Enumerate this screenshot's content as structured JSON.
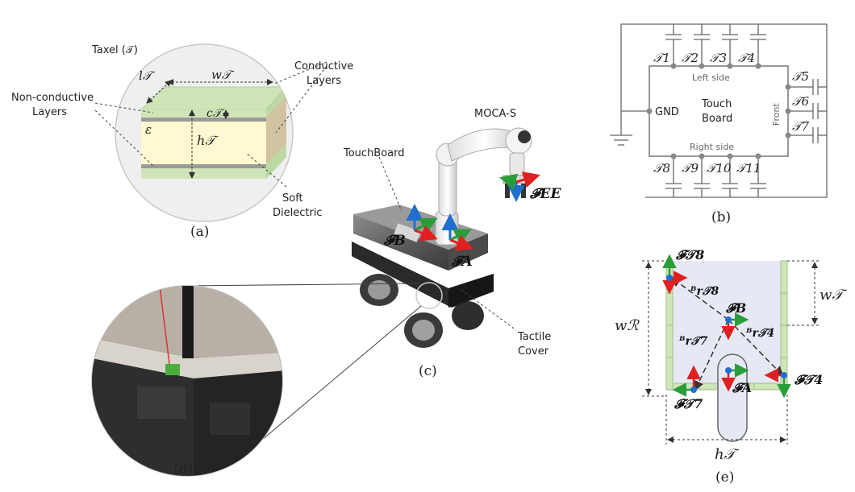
{
  "panel_a": {
    "caption": "(a)",
    "taxel_label": "Taxel (𝒯)",
    "conductive_label_1": "Conductive",
    "conductive_label_2": "Layers",
    "nonconductive_label_1": "Non-conductive",
    "nonconductive_label_2": "Layers",
    "soft_label_1": "Soft",
    "soft_label_2": "Dielectric",
    "l_T": "l𝒯",
    "w_T": "w𝒯",
    "c_T": "c𝒯",
    "h_T": "h𝒯",
    "epsilon": "ε"
  },
  "panel_b": {
    "caption": "(b)",
    "gnd": "GND",
    "board_1": "Touch",
    "board_2": "Board",
    "left_side": "Left side",
    "right_side": "Right side",
    "front": "Front",
    "taxels_top": [
      "𝒯1",
      "𝒯2",
      "𝒯3",
      "𝒯4"
    ],
    "taxels_right": [
      "𝒯5",
      "𝒯6",
      "𝒯7"
    ],
    "taxels_bottom": [
      "𝒯8",
      "𝒯9",
      "𝒯10",
      "𝒯11"
    ]
  },
  "panel_c": {
    "caption": "(c)",
    "moca": "MOCA-S",
    "touchboard": "TouchBoard",
    "tactile_1": "Tactile",
    "tactile_2": "Cover",
    "F_EE": "𝓕EE",
    "F_B": "𝓕B",
    "F_A": "𝓕A"
  },
  "panel_d": {
    "caption": "(d)"
  },
  "panel_e": {
    "caption": "(e)",
    "F_T8": "𝓕𝒯8",
    "F_B": "𝓕B",
    "F_A": "𝓕A",
    "F_T7": "𝓕𝒯7",
    "F_T4": "𝓕𝒯4",
    "r_T8": "ᴮr𝒯8",
    "r_T7": "ᴮr𝒯7",
    "r_T4": "ᴮr𝒯4",
    "w_T": "w𝒯",
    "w_R": "wℛ",
    "h_T": "h𝒯"
  },
  "colors": {
    "green_layer": "#cfe5b8",
    "dielectric": "#fff8d0",
    "grey_layer": "#9a9a9a",
    "axis_red": "#e02020",
    "axis_green": "#2a9d3a",
    "axis_blue": "#1f6fd0",
    "panel_e_fill": "#e6e9f4"
  }
}
